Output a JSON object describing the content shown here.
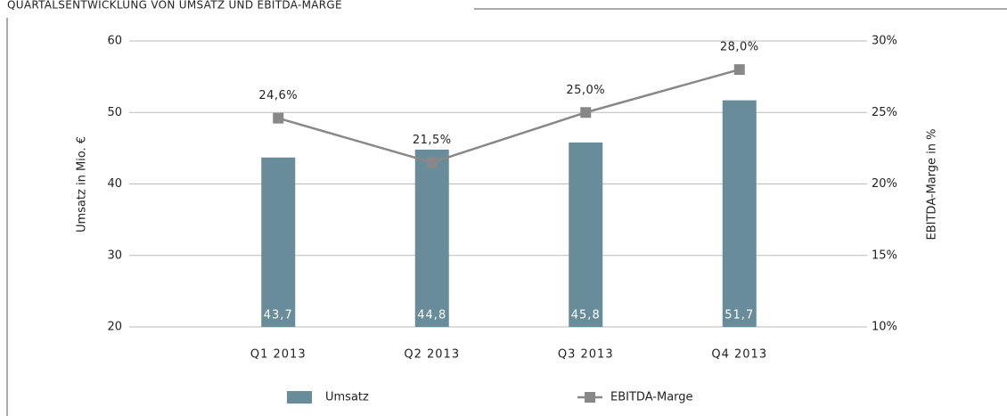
{
  "chart_data": {
    "type": "bar-line",
    "title": "QUARTALSENTWICKLUNG VON UMSATZ UND EBITDA-MARGE",
    "categories": [
      "Q1 2013",
      "Q2 2013",
      "Q3 2013",
      "Q4 2013"
    ],
    "series": [
      {
        "name": "Umsatz",
        "type": "bar",
        "color": "#688c9a",
        "values": [
          43.7,
          44.8,
          45.8,
          51.7
        ],
        "value_labels": [
          "43,7",
          "44,8",
          "45,8",
          "51,7"
        ]
      },
      {
        "name": "EBITDA-Marge",
        "type": "line",
        "axis": "y2",
        "color": "#888888",
        "values": [
          24.6,
          21.5,
          25.0,
          28.0
        ],
        "value_labels": [
          "24,6%",
          "21,5%",
          "25,0%",
          "28,0%"
        ]
      }
    ],
    "ylabel": "Umsatz in Mio. €",
    "y2label": "EBITDA-Marge in %",
    "ylim": [
      20,
      60
    ],
    "yticks": [
      20,
      30,
      40,
      50,
      60
    ],
    "y2lim": [
      10,
      30
    ],
    "y2ticks": [
      {
        "value": 10,
        "label": "10%"
      },
      {
        "value": 15,
        "label": "15%"
      },
      {
        "value": 20,
        "label": "20%"
      },
      {
        "value": 25,
        "label": "25%"
      },
      {
        "value": 30,
        "label": "30%"
      }
    ],
    "grid": true,
    "legend": "bottom"
  }
}
